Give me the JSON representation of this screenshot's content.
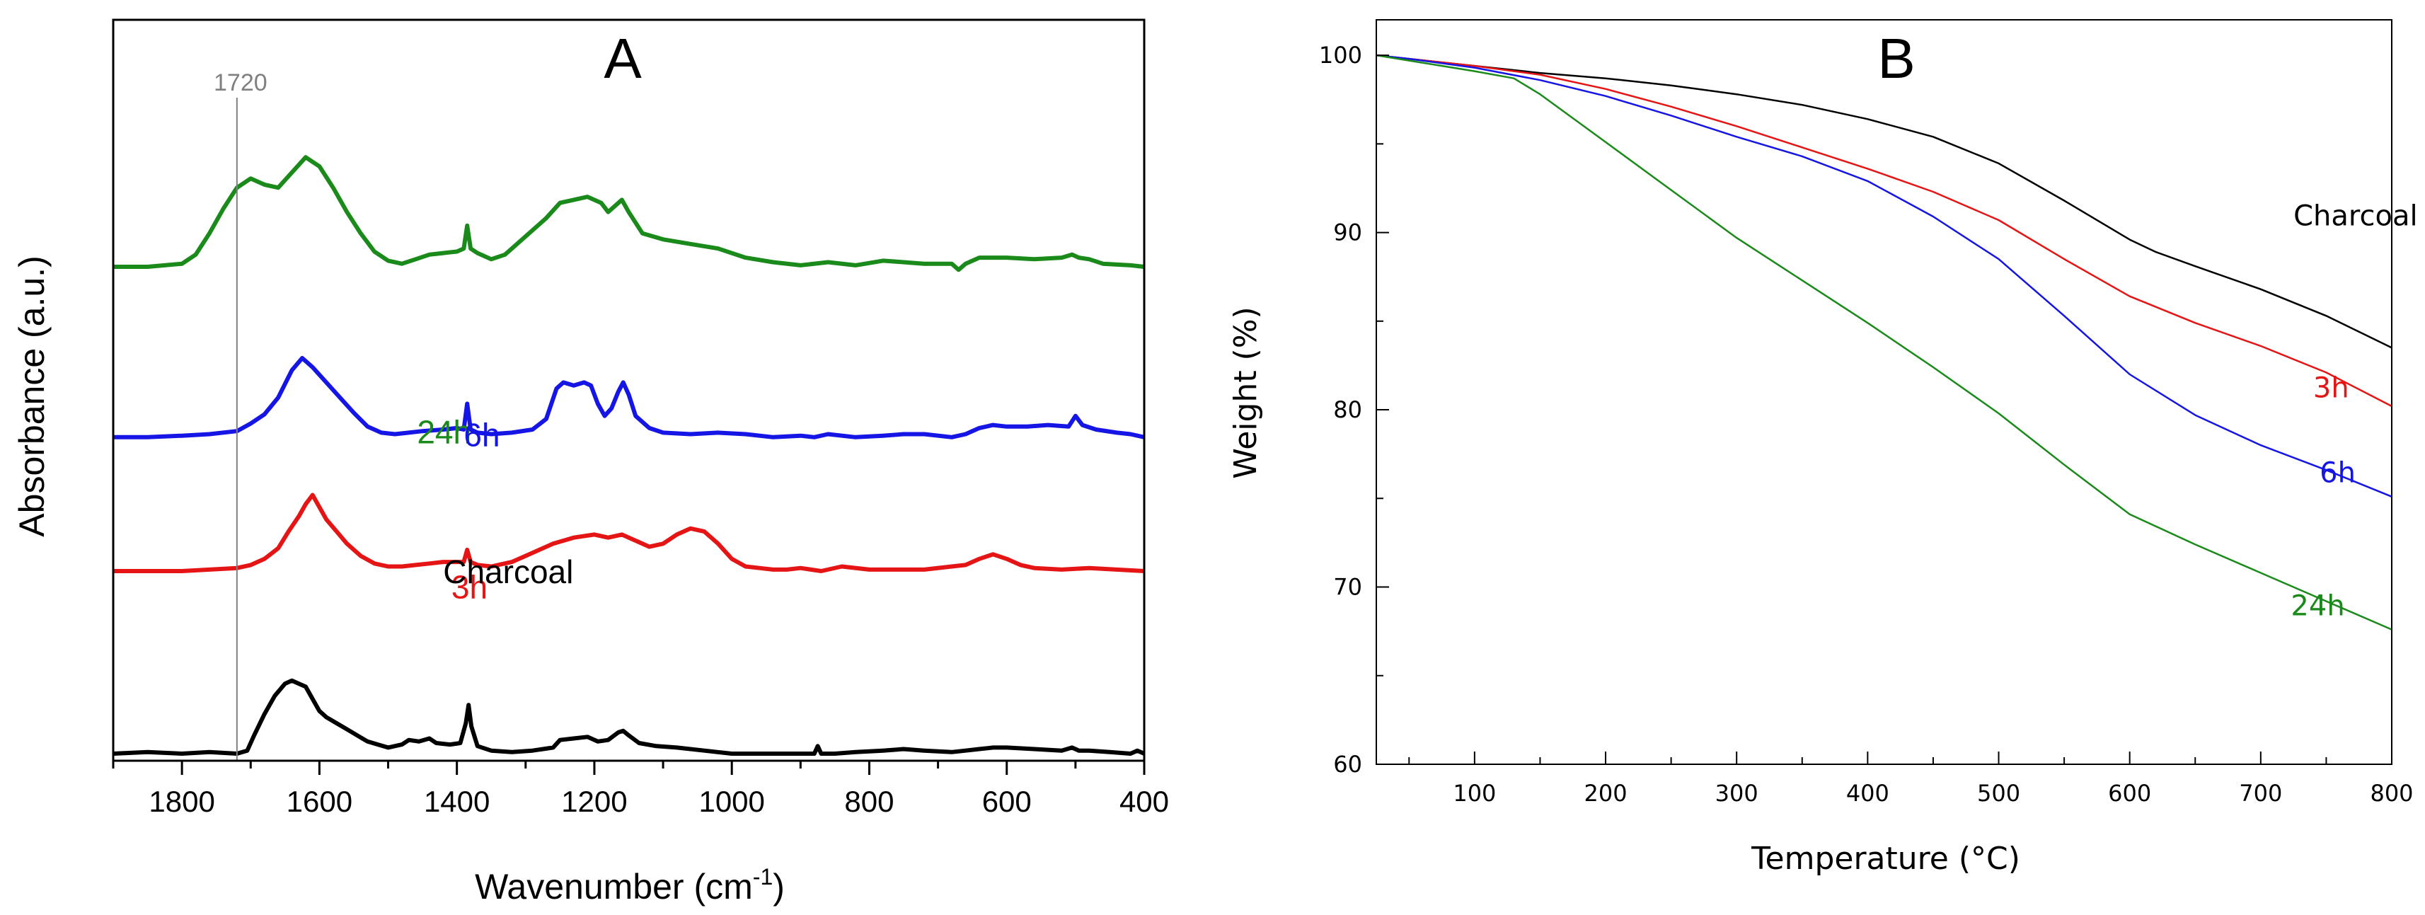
{
  "chart_data": [
    {
      "panel": "A",
      "type": "line",
      "title": "A",
      "xlabel": "Wavenumber (cm",
      "xlabel_sup": "-1",
      "xlabel_close": ")",
      "ylabel": "Absorbance (a.u.)",
      "xlim": [
        1900,
        400
      ],
      "x_reversed": true,
      "xticks": [
        "1800",
        "1600",
        "1400",
        "1200",
        "1000",
        "800",
        "600",
        "400"
      ],
      "xtick_values": [
        1800,
        1600,
        1400,
        1200,
        1000,
        800,
        600,
        400
      ],
      "y_ticks_shown": false,
      "reference_line": {
        "x": 1720,
        "label": "1720",
        "color": "#808080"
      },
      "series": [
        {
          "name": "24h",
          "color": "#1a8a1a",
          "offset": 3.2,
          "x": [
            1900,
            1850,
            1800,
            1780,
            1760,
            1740,
            1720,
            1700,
            1680,
            1660,
            1640,
            1620,
            1600,
            1580,
            1560,
            1540,
            1520,
            1500,
            1480,
            1460,
            1440,
            1420,
            1400,
            1390,
            1385,
            1380,
            1370,
            1350,
            1330,
            1300,
            1270,
            1250,
            1230,
            1210,
            1190,
            1180,
            1170,
            1160,
            1150,
            1130,
            1100,
            1060,
            1020,
            980,
            940,
            900,
            860,
            820,
            780,
            750,
            720,
            680,
            670,
            660,
            640,
            600,
            560,
            520,
            505,
            495,
            480,
            460,
            420,
            400
          ],
          "values": [
            0.0,
            0.0,
            0.02,
            0.08,
            0.22,
            0.38,
            0.52,
            0.58,
            0.54,
            0.52,
            0.62,
            0.72,
            0.66,
            0.52,
            0.36,
            0.22,
            0.1,
            0.04,
            0.02,
            0.05,
            0.08,
            0.09,
            0.1,
            0.12,
            0.27,
            0.12,
            0.09,
            0.05,
            0.08,
            0.2,
            0.32,
            0.42,
            0.44,
            0.46,
            0.42,
            0.36,
            0.4,
            0.44,
            0.36,
            0.22,
            0.18,
            0.15,
            0.12,
            0.06,
            0.03,
            0.01,
            0.03,
            0.01,
            0.04,
            0.03,
            0.02,
            0.02,
            -0.02,
            0.02,
            0.06,
            0.06,
            0.05,
            0.06,
            0.08,
            0.06,
            0.05,
            0.02,
            0.01,
            0.0
          ]
        },
        {
          "name": "6h",
          "color": "#1515e6",
          "offset": 2.08,
          "x": [
            1900,
            1850,
            1800,
            1760,
            1720,
            1700,
            1680,
            1660,
            1640,
            1625,
            1610,
            1590,
            1570,
            1550,
            1530,
            1510,
            1490,
            1470,
            1450,
            1420,
            1400,
            1390,
            1385,
            1380,
            1370,
            1350,
            1320,
            1290,
            1270,
            1255,
            1245,
            1230,
            1215,
            1205,
            1195,
            1185,
            1175,
            1165,
            1158,
            1150,
            1140,
            1120,
            1100,
            1060,
            1020,
            980,
            940,
            900,
            880,
            860,
            820,
            780,
            750,
            720,
            680,
            660,
            640,
            620,
            600,
            570,
            540,
            510,
            500,
            490,
            470,
            440,
            420,
            400
          ],
          "values": [
            0.0,
            0.0,
            0.01,
            0.02,
            0.04,
            0.09,
            0.15,
            0.26,
            0.44,
            0.52,
            0.46,
            0.36,
            0.26,
            0.16,
            0.07,
            0.03,
            0.02,
            0.03,
            0.04,
            0.05,
            0.06,
            0.05,
            0.22,
            0.05,
            0.03,
            0.02,
            0.03,
            0.05,
            0.12,
            0.32,
            0.36,
            0.34,
            0.36,
            0.34,
            0.22,
            0.14,
            0.19,
            0.3,
            0.36,
            0.28,
            0.14,
            0.06,
            0.03,
            0.02,
            0.03,
            0.02,
            0.0,
            0.01,
            0.0,
            0.02,
            0.0,
            0.01,
            0.02,
            0.02,
            0.0,
            0.02,
            0.06,
            0.08,
            0.07,
            0.07,
            0.08,
            0.07,
            0.14,
            0.08,
            0.05,
            0.03,
            0.02,
            0.0
          ]
        },
        {
          "name": "3h",
          "color": "#e61515",
          "offset": 1.2,
          "x": [
            1900,
            1850,
            1800,
            1760,
            1720,
            1700,
            1680,
            1660,
            1645,
            1630,
            1620,
            1610,
            1600,
            1590,
            1575,
            1560,
            1540,
            1520,
            1500,
            1480,
            1460,
            1440,
            1420,
            1400,
            1390,
            1385,
            1380,
            1370,
            1350,
            1320,
            1290,
            1260,
            1230,
            1200,
            1180,
            1160,
            1140,
            1120,
            1100,
            1080,
            1060,
            1040,
            1020,
            1000,
            980,
            960,
            940,
            920,
            900,
            870,
            840,
            800,
            760,
            720,
            680,
            660,
            640,
            620,
            600,
            580,
            560,
            520,
            480,
            440,
            400
          ],
          "values": [
            0.0,
            0.0,
            0.0,
            0.01,
            0.02,
            0.04,
            0.08,
            0.15,
            0.26,
            0.36,
            0.44,
            0.5,
            0.42,
            0.34,
            0.26,
            0.18,
            0.1,
            0.05,
            0.03,
            0.03,
            0.04,
            0.05,
            0.06,
            0.06,
            0.06,
            0.14,
            0.06,
            0.04,
            0.03,
            0.06,
            0.12,
            0.18,
            0.22,
            0.24,
            0.22,
            0.24,
            0.2,
            0.16,
            0.18,
            0.24,
            0.28,
            0.26,
            0.18,
            0.08,
            0.03,
            0.02,
            0.01,
            0.01,
            0.02,
            0.0,
            0.03,
            0.01,
            0.01,
            0.01,
            0.03,
            0.04,
            0.08,
            0.11,
            0.08,
            0.04,
            0.02,
            0.01,
            0.02,
            0.01,
            0.0
          ]
        },
        {
          "name": "Charcoal",
          "color": "#000000",
          "offset": 0.0,
          "x": [
            1900,
            1850,
            1800,
            1760,
            1720,
            1705,
            1695,
            1680,
            1665,
            1650,
            1640,
            1630,
            1620,
            1610,
            1600,
            1590,
            1575,
            1560,
            1545,
            1530,
            1515,
            1500,
            1480,
            1470,
            1455,
            1440,
            1430,
            1410,
            1395,
            1387,
            1383,
            1379,
            1370,
            1350,
            1320,
            1290,
            1260,
            1250,
            1230,
            1210,
            1195,
            1180,
            1165,
            1158,
            1150,
            1135,
            1110,
            1080,
            1040,
            1000,
            960,
            920,
            880,
            875,
            870,
            850,
            820,
            780,
            750,
            720,
            680,
            660,
            640,
            620,
            600,
            560,
            520,
            505,
            495,
            480,
            450,
            420,
            410,
            400
          ],
          "values": [
            0.0,
            0.01,
            0.0,
            0.01,
            0.0,
            0.02,
            0.12,
            0.26,
            0.38,
            0.46,
            0.48,
            0.46,
            0.44,
            0.36,
            0.28,
            0.24,
            0.2,
            0.16,
            0.12,
            0.08,
            0.06,
            0.04,
            0.06,
            0.09,
            0.08,
            0.1,
            0.07,
            0.06,
            0.07,
            0.2,
            0.32,
            0.18,
            0.05,
            0.02,
            0.01,
            0.02,
            0.04,
            0.09,
            0.1,
            0.11,
            0.08,
            0.09,
            0.14,
            0.15,
            0.12,
            0.07,
            0.05,
            0.04,
            0.02,
            0.0,
            0.0,
            0.0,
            0.0,
            0.05,
            0.0,
            0.0,
            0.01,
            0.02,
            0.03,
            0.02,
            0.01,
            0.02,
            0.03,
            0.04,
            0.04,
            0.03,
            0.02,
            0.04,
            0.02,
            0.02,
            0.01,
            0.0,
            0.02,
            0.0
          ]
        }
      ],
      "series_label_positions": {
        "24h": [
          1458,
          2.04
        ],
        "6h": [
          1390,
          2.02
        ],
        "3h": [
          1408,
          1.02
        ],
        "Charcoal": [
          1420,
          1.12
        ]
      }
    },
    {
      "panel": "B",
      "type": "line",
      "title": "B",
      "xlabel": "Temperature (°C)",
      "ylabel": "Weight (%)",
      "xlim": [
        25,
        800
      ],
      "ylim": [
        60,
        102
      ],
      "xticks": [
        "100",
        "200",
        "300",
        "400",
        "500",
        "600",
        "700",
        "800"
      ],
      "xtick_values": [
        100,
        200,
        300,
        400,
        500,
        600,
        700,
        800
      ],
      "yticks": [
        "60",
        "70",
        "80",
        "90",
        "100"
      ],
      "ytick_values": [
        60,
        70,
        80,
        90,
        100
      ],
      "series": [
        {
          "name": "Charcoal",
          "color": "#000000",
          "x": [
            25,
            50,
            100,
            150,
            200,
            250,
            300,
            350,
            400,
            450,
            500,
            550,
            600,
            620,
            650,
            700,
            750,
            800
          ],
          "values": [
            100.0,
            99.8,
            99.4,
            99.0,
            98.7,
            98.3,
            97.8,
            97.2,
            96.4,
            95.4,
            93.9,
            91.8,
            89.6,
            88.9,
            88.1,
            86.8,
            85.3,
            83.5
          ]
        },
        {
          "name": "3h",
          "color": "#e61515",
          "x": [
            25,
            50,
            100,
            150,
            200,
            250,
            300,
            350,
            400,
            450,
            500,
            550,
            600,
            650,
            700,
            750,
            800
          ],
          "values": [
            100.0,
            99.8,
            99.4,
            98.9,
            98.1,
            97.1,
            96.0,
            94.8,
            93.6,
            92.3,
            90.7,
            88.5,
            86.4,
            84.9,
            83.6,
            82.1,
            80.2
          ]
        },
        {
          "name": "6h",
          "color": "#1515e6",
          "x": [
            25,
            50,
            100,
            150,
            200,
            250,
            300,
            350,
            400,
            450,
            500,
            550,
            600,
            650,
            700,
            750,
            800
          ],
          "values": [
            100.0,
            99.8,
            99.3,
            98.6,
            97.7,
            96.6,
            95.4,
            94.3,
            92.9,
            90.9,
            88.5,
            85.3,
            82.0,
            79.7,
            78.0,
            76.6,
            75.1
          ]
        },
        {
          "name": "24h",
          "color": "#1a8a1a",
          "x": [
            25,
            50,
            100,
            130,
            150,
            200,
            250,
            300,
            350,
            400,
            450,
            500,
            550,
            600,
            650,
            700,
            750,
            800
          ],
          "values": [
            100.0,
            99.7,
            99.1,
            98.7,
            97.8,
            95.1,
            92.4,
            89.7,
            87.3,
            84.9,
            82.4,
            79.8,
            76.9,
            74.1,
            72.4,
            70.8,
            69.2,
            67.6
          ]
        }
      ],
      "series_label_positions": {
        "Charcoal": [
          725,
          90.4
        ],
        "3h": [
          740,
          80.7
        ],
        "6h": [
          745,
          75.9
        ],
        "24h": [
          723,
          68.4
        ]
      }
    }
  ]
}
